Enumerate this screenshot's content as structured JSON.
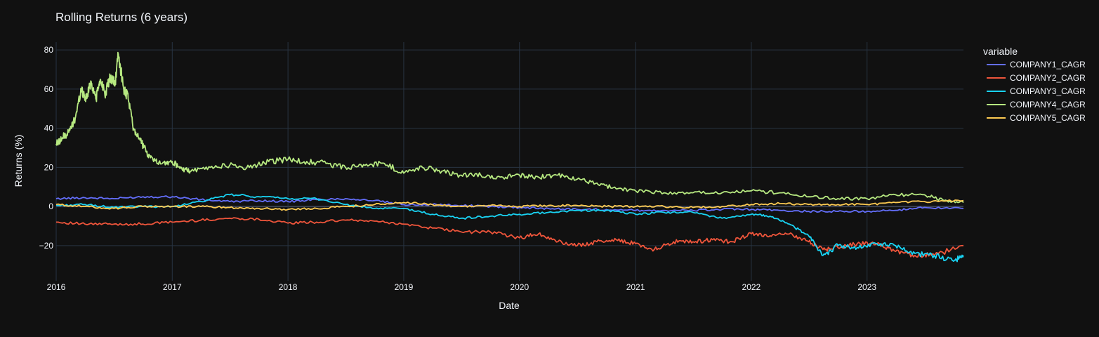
{
  "chart_data": {
    "type": "line",
    "title": "Rolling Returns (6 years)",
    "xlabel": "Date",
    "ylabel": "Returns (%)",
    "x_range": [
      "2016-01-01",
      "2023-11-01"
    ],
    "ylim": [
      -38,
      84
    ],
    "x_ticks": [
      "2016",
      "2017",
      "2018",
      "2019",
      "2020",
      "2021",
      "2022",
      "2023"
    ],
    "y_ticks": [
      80,
      60,
      40,
      20,
      0,
      -20
    ],
    "y_tick_labels": [
      "80",
      "60",
      "40",
      "20",
      "0",
      "−20"
    ],
    "grid": true,
    "legend": {
      "title": "variable",
      "position": "top-right, outside plot"
    },
    "series": [
      {
        "name": "COMPANY1_CAGR",
        "color": "#636efa",
        "x": [
          "2016-01-01",
          "2016-04-01",
          "2016-07-01",
          "2016-10-01",
          "2017-01-01",
          "2017-04-01",
          "2017-07-01",
          "2017-10-01",
          "2018-01-01",
          "2018-04-01",
          "2018-07-01",
          "2018-10-01",
          "2019-01-01",
          "2019-04-01",
          "2019-07-01",
          "2019-10-01",
          "2020-01-01",
          "2020-04-01",
          "2020-07-01",
          "2020-10-01",
          "2021-01-01",
          "2021-04-01",
          "2021-07-01",
          "2021-10-01",
          "2022-01-01",
          "2022-04-01",
          "2022-07-01",
          "2022-10-01",
          "2023-01-01",
          "2023-04-01",
          "2023-07-01",
          "2023-11-01"
        ],
        "y": [
          4,
          4.5,
          4,
          5,
          5,
          3.5,
          2.5,
          3,
          2.5,
          3.5,
          4,
          3,
          1,
          1,
          0.5,
          0,
          -0.5,
          -1,
          -1.5,
          -1.5,
          -2,
          -2,
          -2,
          -1.5,
          -1.5,
          -2,
          -2.5,
          -2.5,
          -2.5,
          -2,
          -0.5,
          -1
        ]
      },
      {
        "name": "COMPANY2_CAGR",
        "color": "#ef553b",
        "x": [
          "2016-01-01",
          "2016-04-01",
          "2016-07-01",
          "2016-10-01",
          "2017-01-01",
          "2017-04-01",
          "2017-07-01",
          "2017-10-01",
          "2018-01-01",
          "2018-04-01",
          "2018-07-01",
          "2018-10-01",
          "2019-01-01",
          "2019-04-01",
          "2019-07-01",
          "2019-10-01",
          "2020-01-01",
          "2020-03-01",
          "2020-05-01",
          "2020-07-01",
          "2020-09-01",
          "2020-11-01",
          "2021-01-01",
          "2021-03-01",
          "2021-05-01",
          "2021-07-01",
          "2021-09-01",
          "2021-11-01",
          "2022-01-01",
          "2022-03-01",
          "2022-05-01",
          "2022-07-01",
          "2022-08-15",
          "2022-10-01",
          "2022-12-01",
          "2023-02-01",
          "2023-04-01",
          "2023-06-01",
          "2023-08-01",
          "2023-11-01"
        ],
        "y": [
          -8,
          -9,
          -9,
          -9,
          -8,
          -7,
          -6,
          -6.5,
          -8.5,
          -8,
          -7,
          -7.5,
          -9,
          -11,
          -13,
          -13,
          -16,
          -14,
          -18,
          -20,
          -18,
          -17,
          -19,
          -22,
          -18,
          -18,
          -17,
          -18,
          -14,
          -15,
          -14,
          -18,
          -22,
          -21,
          -19,
          -19,
          -23,
          -25,
          -25,
          -20
        ]
      },
      {
        "name": "COMPANY3_CAGR",
        "color": "#19d3f3",
        "x": [
          "2016-01-01",
          "2016-04-01",
          "2016-07-01",
          "2016-10-01",
          "2017-01-01",
          "2017-04-01",
          "2017-07-01",
          "2017-10-01",
          "2018-01-01",
          "2018-04-01",
          "2018-07-01",
          "2018-10-01",
          "2019-01-01",
          "2019-04-01",
          "2019-07-01",
          "2019-10-01",
          "2020-01-01",
          "2020-04-01",
          "2020-07-01",
          "2020-10-01",
          "2021-01-01",
          "2021-04-01",
          "2021-07-01",
          "2021-10-01",
          "2022-01-01",
          "2022-03-01",
          "2022-05-01",
          "2022-07-01",
          "2022-08-15",
          "2022-10-01",
          "2022-12-01",
          "2023-02-01",
          "2023-04-01",
          "2023-06-01",
          "2023-08-01",
          "2023-10-01",
          "2023-11-01"
        ],
        "y": [
          0.5,
          1,
          -0.5,
          0,
          0,
          2.5,
          6,
          5,
          4,
          4,
          1,
          -1,
          -1,
          -4,
          -6,
          -5,
          -4,
          -3,
          -2,
          -2,
          -4,
          -3,
          -3,
          -6,
          -4,
          -5,
          -9,
          -15,
          -25,
          -20,
          -21,
          -19,
          -20,
          -24,
          -25,
          -28,
          -25
        ]
      },
      {
        "name": "COMPANY4_CAGR",
        "color": "#b6e880",
        "x": [
          "2016-01-01",
          "2016-01-20",
          "2016-02-10",
          "2016-03-01",
          "2016-03-20",
          "2016-04-05",
          "2016-04-20",
          "2016-05-05",
          "2016-05-20",
          "2016-06-05",
          "2016-06-20",
          "2016-07-05",
          "2016-07-15",
          "2016-08-01",
          "2016-08-15",
          "2016-09-01",
          "2016-09-20",
          "2016-10-10",
          "2016-11-01",
          "2016-12-01",
          "2017-01-01",
          "2017-02-01",
          "2017-03-01",
          "2017-05-01",
          "2017-07-01",
          "2017-09-01",
          "2017-11-01",
          "2018-01-01",
          "2018-03-01",
          "2018-05-01",
          "2018-07-01",
          "2018-09-01",
          "2018-11-01",
          "2019-01-01",
          "2019-03-01",
          "2019-05-01",
          "2019-07-01",
          "2019-09-01",
          "2019-11-01",
          "2020-01-01",
          "2020-03-01",
          "2020-05-01",
          "2020-07-01",
          "2020-09-01",
          "2020-11-01",
          "2021-01-01",
          "2021-04-01",
          "2021-07-01",
          "2021-10-01",
          "2022-01-01",
          "2022-04-01",
          "2022-07-01",
          "2022-10-01",
          "2023-01-01",
          "2023-04-01",
          "2023-07-01",
          "2023-09-01",
          "2023-11-01"
        ],
        "y": [
          32,
          35,
          38,
          45,
          60,
          55,
          64,
          55,
          65,
          58,
          66,
          63,
          78,
          60,
          55,
          40,
          35,
          28,
          24,
          22,
          23,
          19,
          18,
          20,
          21,
          20,
          23,
          24,
          23,
          22,
          20,
          21,
          22,
          17,
          20,
          18,
          16,
          16,
          15,
          16,
          15,
          16,
          14,
          12,
          9,
          8,
          7,
          7,
          7,
          8,
          7,
          5,
          4,
          4,
          6,
          6,
          3,
          2
        ]
      },
      {
        "name": "COMPANY5_CAGR",
        "color": "#fecb52",
        "x": [
          "2016-01-01",
          "2016-04-01",
          "2016-07-01",
          "2016-10-01",
          "2017-01-01",
          "2017-04-01",
          "2017-07-01",
          "2017-10-01",
          "2018-01-01",
          "2018-04-01",
          "2018-07-01",
          "2018-10-01",
          "2019-01-01",
          "2019-04-01",
          "2019-07-01",
          "2019-10-01",
          "2020-01-01",
          "2020-04-01",
          "2020-07-01",
          "2020-10-01",
          "2021-01-01",
          "2021-04-01",
          "2021-07-01",
          "2021-10-01",
          "2022-01-01",
          "2022-04-01",
          "2022-07-01",
          "2022-10-01",
          "2023-01-01",
          "2023-04-01",
          "2023-07-01",
          "2023-11-01"
        ],
        "y": [
          1,
          0,
          -1,
          0,
          0,
          0,
          -0.5,
          -1,
          -1.5,
          -1,
          0,
          1,
          2,
          1,
          0,
          0.5,
          0,
          0.5,
          0.5,
          0,
          0,
          0,
          -0.5,
          0,
          1,
          1.5,
          1,
          1,
          1,
          2,
          2.5,
          3
        ]
      }
    ]
  }
}
